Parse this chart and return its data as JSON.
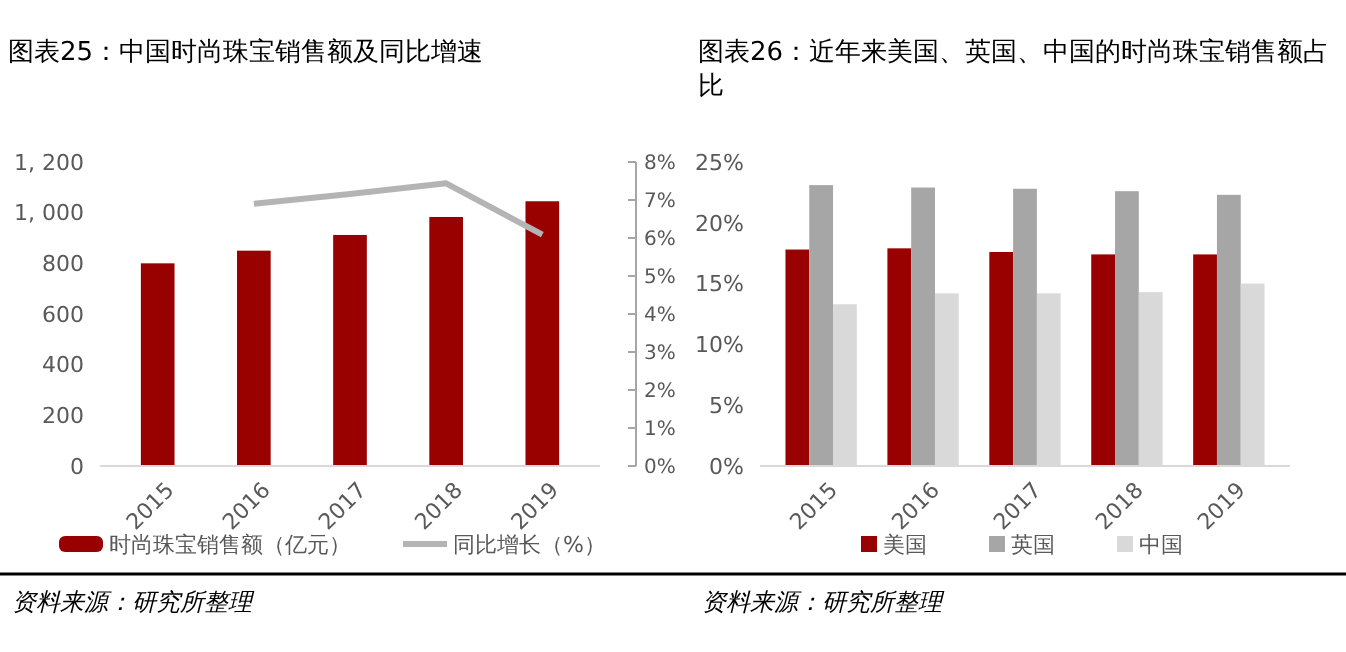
{
  "chart_data": [
    {
      "type": "bar",
      "title": "图表25：中国时尚珠宝销售额及同比增速",
      "categories": [
        "2015",
        "2016",
        "2017",
        "2018",
        "2019"
      ],
      "series": [
        {
          "name": "时尚珠宝销售额（亿元）",
          "color": "#990000",
          "values": [
            800,
            850,
            912,
            983,
            1045
          ]
        },
        {
          "name": "同比增长（%）",
          "type": "line",
          "axis": "y2",
          "color": "#b4b4b4",
          "values": [
            null,
            6.9,
            7.16,
            7.44,
            6.09
          ]
        }
      ],
      "ylim": [
        0,
        1200
      ],
      "yticks": [
        0,
        200,
        400,
        600,
        800,
        {
          "value": 1000,
          "label": "1, 000"
        },
        {
          "value": 1200,
          "label": "1, 200"
        }
      ],
      "y2lim": [
        0,
        8
      ],
      "y2ticks": [
        {
          "value": 0,
          "label": "0%"
        },
        {
          "value": 1,
          "label": "1%"
        },
        {
          "value": 2,
          "label": "2%"
        },
        {
          "value": 3,
          "label": "3%"
        },
        {
          "value": 4,
          "label": "4%"
        },
        {
          "value": 5,
          "label": "5%"
        },
        {
          "value": 6,
          "label": "6%"
        },
        {
          "value": 7,
          "label": "7%"
        },
        {
          "value": 8,
          "label": "8%"
        }
      ],
      "grid": false,
      "legend": "bottom",
      "annotations": [
        "资料来源：研究所整理"
      ]
    },
    {
      "type": "bar",
      "title": "图表26：近年来美国、英国、中国的时尚珠宝销售额占比",
      "categories": [
        "2015",
        "2016",
        "2017",
        "2018",
        "2019"
      ],
      "series": [
        {
          "name": "美国",
          "color": "#990000",
          "values": [
            17.8,
            17.9,
            17.6,
            17.4,
            17.4
          ]
        },
        {
          "name": "英国",
          "color": "#a6a6a6",
          "values": [
            23.1,
            22.9,
            22.8,
            22.6,
            22.3
          ]
        },
        {
          "name": "中国",
          "color": "#d9d9d9",
          "values": [
            13.3,
            14.2,
            14.2,
            14.3,
            15.0
          ]
        }
      ],
      "ylim": [
        0,
        25
      ],
      "yticks": [
        {
          "value": 0,
          "label": "0%"
        },
        {
          "value": 5,
          "label": "5%"
        },
        {
          "value": 10,
          "label": "10%"
        },
        {
          "value": 15,
          "label": "15%"
        },
        {
          "value": 20,
          "label": "20%"
        },
        {
          "value": 25,
          "label": "25%"
        }
      ],
      "grid": false,
      "legend": "bottom",
      "annotations": [
        "资料来源：研究所整理"
      ]
    }
  ]
}
